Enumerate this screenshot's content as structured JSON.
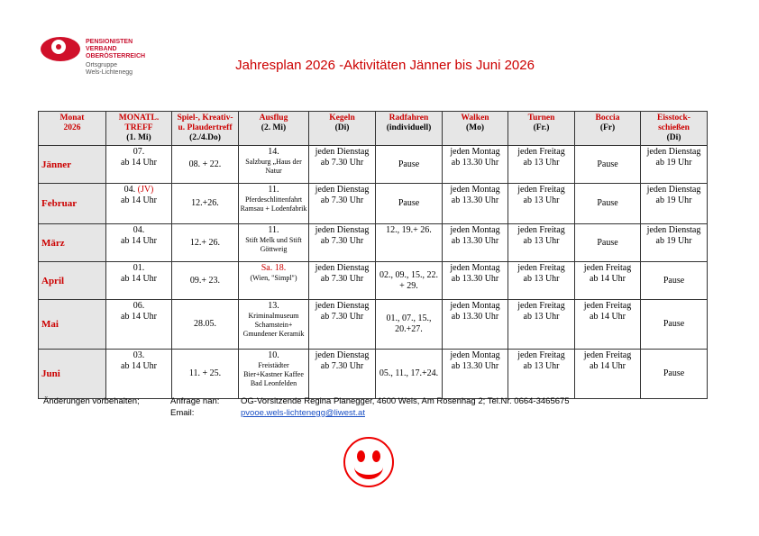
{
  "logo": {
    "line1": "PENSIONISTEN",
    "line2": "VERBAND",
    "line3": "OBERÖSTERREICH",
    "sub1": "Ortsgruppe",
    "sub2": "Wels-Lichtenegg"
  },
  "title": "Jahresplan 2026 -Aktivitäten Jänner bis Juni 2026",
  "headers": [
    {
      "top": "Monat",
      "bottom": "2026"
    },
    {
      "top": "MONATL. TREFF",
      "bottom": "(1. Mi)"
    },
    {
      "top": "Spiel-, Kreativ- u. Plaudertreff",
      "bottom": "(2./4.Do)"
    },
    {
      "top": "Ausflug",
      "bottom": "(2. Mi)"
    },
    {
      "top": "Kegeln",
      "bottom": "(Di)"
    },
    {
      "top": "Radfahren",
      "bottom": "(individuell)"
    },
    {
      "top": "Walken",
      "bottom": "(Mo)"
    },
    {
      "top": "Turnen",
      "bottom": "(Fr.)"
    },
    {
      "top": "Boccia",
      "bottom": "(Fr)"
    },
    {
      "top": "Eisstock-schießen",
      "bottom": "(Di)"
    }
  ],
  "rows": [
    {
      "month": "Jänner",
      "treff": "07.",
      "treff_note": "",
      "treff_time": "ab 14 Uhr",
      "spiel": "08. + 22.",
      "ausflug_date": "14.",
      "ausflug_desc": "Salzburg „Haus der Natur",
      "kegeln1": "jeden Dienstag",
      "kegeln2": "ab 7.30 Uhr",
      "rad": "Pause",
      "walk1": "jeden Montag",
      "walk2": "ab 13.30 Uhr",
      "turn1": "jeden Freitag",
      "turn2": "ab 13 Uhr",
      "boccia1": "Pause",
      "boccia2": "",
      "eis1": "jeden Dienstag",
      "eis2": "ab 19 Uhr"
    },
    {
      "month": "Februar",
      "treff": "04.",
      "treff_note": "(JV)",
      "treff_time": "ab 14 Uhr",
      "spiel": "12.+26.",
      "ausflug_date": "11.",
      "ausflug_desc": "Pferdeschlittenfahrt Ramsau + Lodenfabrik",
      "kegeln1": "jeden Dienstag",
      "kegeln2": "ab 7.30 Uhr",
      "rad": "Pause",
      "walk1": "jeden Montag",
      "walk2": "ab 13.30 Uhr",
      "turn1": "jeden Freitag",
      "turn2": "ab 13 Uhr",
      "boccia1": "Pause",
      "boccia2": "",
      "eis1": "jeden Dienstag",
      "eis2": "ab 19 Uhr"
    },
    {
      "month": "März",
      "treff": "04.",
      "treff_note": "",
      "treff_time": "ab 14 Uhr",
      "spiel": "12.+ 26.",
      "ausflug_date": "11.",
      "ausflug_desc": "Stift Melk und Stift Göttweig",
      "kegeln1": "jeden Dienstag",
      "kegeln2": "ab 7.30 Uhr",
      "rad": "12., 19.+ 26.",
      "walk1": "jeden Montag",
      "walk2": "ab 13.30 Uhr",
      "turn1": "jeden Freitag",
      "turn2": "ab 13 Uhr",
      "boccia1": "Pause",
      "boccia2": "",
      "eis1": "jeden Dienstag",
      "eis2": "ab 19 Uhr"
    },
    {
      "month": "April",
      "treff": "01.",
      "treff_note": "",
      "treff_time": "ab 14 Uhr",
      "spiel": "09.+ 23.",
      "ausflug_date": "Sa. 18.",
      "ausflug_desc": "(Wien, \"Simpl\")",
      "kegeln1": "jeden Dienstag",
      "kegeln2": "ab 7.30 Uhr",
      "rad": "02., 09., 15., 22. + 29.",
      "walk1": "jeden Montag",
      "walk2": "ab 13.30 Uhr",
      "turn1": "jeden Freitag",
      "turn2": "ab 13 Uhr",
      "boccia1": "jeden Freitag",
      "boccia2": "ab 14 Uhr",
      "eis1": "Pause",
      "eis2": ""
    },
    {
      "month": "Mai",
      "treff": "06.",
      "treff_note": "",
      "treff_time": "ab 14 Uhr",
      "spiel": "28.05.",
      "ausflug_date": "13.",
      "ausflug_desc": "Kriminalmuseum Scharnstein+ Gmundener Keramik",
      "kegeln1": "jeden Dienstag",
      "kegeln2": "ab 7.30 Uhr",
      "rad": "01., 07., 15., 20.+27.",
      "walk1": "jeden Montag",
      "walk2": "ab 13.30 Uhr",
      "turn1": "jeden Freitag",
      "turn2": "ab 13 Uhr",
      "boccia1": "jeden Freitag",
      "boccia2": "ab 14 Uhr",
      "eis1": "Pause",
      "eis2": ""
    },
    {
      "month": "Juni",
      "treff": "03.",
      "treff_note": "",
      "treff_time": "ab 14 Uhr",
      "spiel": "11. + 25.",
      "ausflug_date": "10.",
      "ausflug_desc": "Freistädter Bier+Kastner Kaffee Bad Leonfelden",
      "kegeln1": "jeden Dienstag",
      "kegeln2": "ab 7.30 Uhr",
      "rad": "05., 11., 17.+24.",
      "walk1": "jeden Montag",
      "walk2": "ab 13.30 Uhr",
      "turn1": "jeden Freitag",
      "turn2": "ab 13 Uhr",
      "boccia1": "jeden Freitag",
      "boccia2": "ab 14 Uhr",
      "eis1": "Pause",
      "eis2": ""
    }
  ],
  "footer": {
    "note": "Änderungen vorbehalten;",
    "inquiry_label": "Anfrage nan:",
    "contact": "OG-Vorsitzende Regina Planegger, 4600 Wels, Am Rosenhag 2; Tel.Nr. 0664-3465675",
    "email_label": "Email:",
    "email": "pvooe.wels-lichtenegg@liwest.at"
  },
  "colors": {
    "accent": "#cc0000",
    "header_bg": "#e6e6e6",
    "link": "#1a4fc4"
  },
  "icons": {
    "smiley": "smiley-face-icon"
  }
}
